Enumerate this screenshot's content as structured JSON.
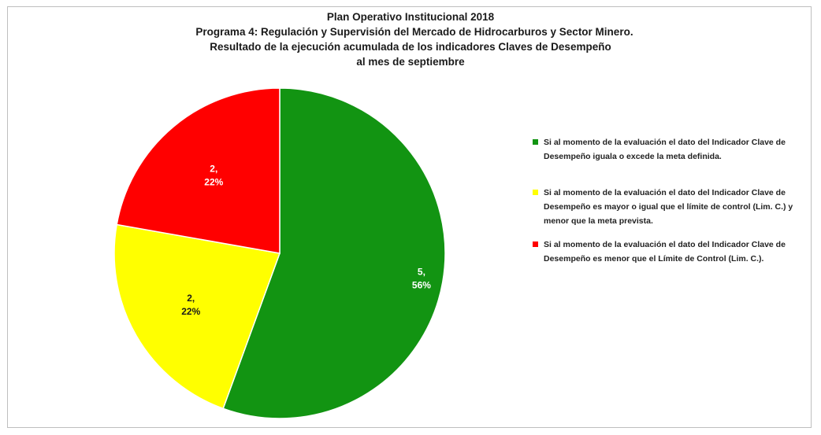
{
  "titles": [
    "Plan Operativo Institucional 2018",
    "Programa 4:  Regulación y Supervisión del Mercado de Hidrocarburos y Sector Minero.",
    "Resultado de la ejecución  acumulada de los indicadores Claves de Desempeño",
    "al mes de septiembre"
  ],
  "chart_data": {
    "type": "pie",
    "slices": [
      {
        "label": "Si al momento de la evaluación el dato del Indicador Clave de Desempeño iguala o excede la meta definida.",
        "value": 5,
        "percent": "56%",
        "color": "#129412",
        "label_color": "#ffffff",
        "value_label": "5,"
      },
      {
        "label": "Si al momento de la evaluación el dato del Indicador Clave de Desempeño es mayor o igual que el límite de control (Lim. C.) y menor que la meta prevista.",
        "value": 2,
        "percent": "22%",
        "color": "#ffff00",
        "label_color": "#1a1a1a",
        "value_label": "2,"
      },
      {
        "label": "Si al momento de la evaluación el dato del Indicador Clave de Desempeño es menor que el Límite de Control (Lim. C.).",
        "value": 2,
        "percent": "22%",
        "color": "#ff0000",
        "label_color": "#ffffff",
        "value_label": "2,"
      }
    ],
    "legend_position": "right"
  }
}
